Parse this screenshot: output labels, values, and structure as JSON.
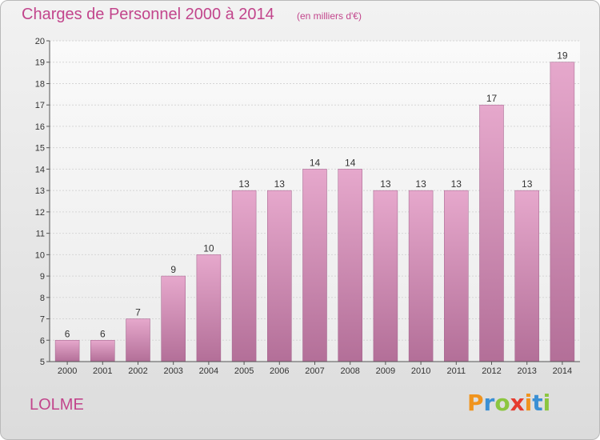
{
  "header": {
    "title": "Charges de Personnel 2000 à 2014",
    "subtitle": "(en milliers d'€)"
  },
  "footer": {
    "commune": "LOLME",
    "logo": {
      "letters": [
        "P",
        "r",
        "o",
        "x",
        "i",
        "t",
        "i"
      ],
      "colors": [
        "#f0941e",
        "#3a8fd4",
        "#8cc63f",
        "#e63b2e",
        "#f0941e",
        "#3a8fd4",
        "#8cc63f"
      ]
    }
  },
  "chart_data": {
    "type": "bar",
    "categories": [
      "2000",
      "2001",
      "2002",
      "2003",
      "2004",
      "2005",
      "2006",
      "2007",
      "2008",
      "2009",
      "2010",
      "2011",
      "2012",
      "2013",
      "2014"
    ],
    "values": [
      6,
      6,
      7,
      9,
      10,
      13,
      13,
      14,
      14,
      13,
      13,
      13,
      17,
      13,
      19
    ],
    "value_labels": [
      "6",
      "6",
      "7",
      "9",
      "10",
      "13",
      "13",
      "14",
      "14",
      "13",
      "13",
      "13",
      "17",
      "13",
      "19"
    ],
    "yticks": [
      "5",
      "6",
      "7",
      "8",
      "9",
      "10",
      "11",
      "12",
      "13",
      "14",
      "15",
      "16",
      "17",
      "18",
      "19",
      "20"
    ],
    "ylim": [
      5,
      20
    ],
    "grid": true,
    "bar_color_top": "#e6a8cc",
    "bar_color_bottom": "#b36f98",
    "accent_color": "#c2458c"
  }
}
